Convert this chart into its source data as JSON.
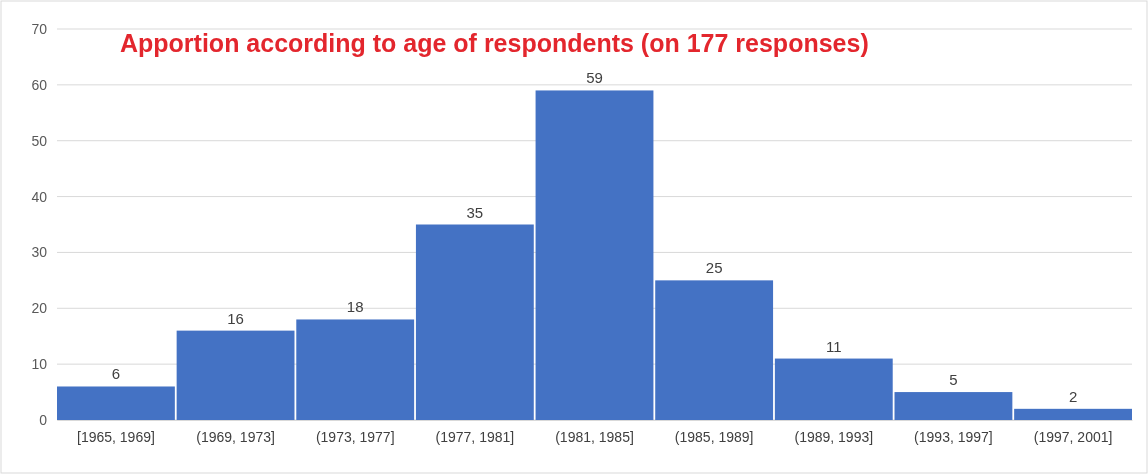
{
  "chart_data": {
    "type": "bar",
    "title": "Apportion according to age of respondents (on 177 responses)",
    "categories": [
      "[1965, 1969]",
      "(1969, 1973]",
      "(1973, 1977]",
      "(1977, 1981]",
      "(1981, 1985]",
      "(1985, 1989]",
      "(1989, 1993]",
      "(1993, 1997]",
      "(1997, 2001]"
    ],
    "values": [
      6,
      16,
      18,
      35,
      59,
      25,
      11,
      5,
      2
    ],
    "color": "#4472c4",
    "ylim": [
      0,
      70
    ],
    "yticks": [
      0,
      10,
      20,
      30,
      40,
      50,
      60,
      70
    ],
    "grid": "y",
    "data_labels": true
  }
}
